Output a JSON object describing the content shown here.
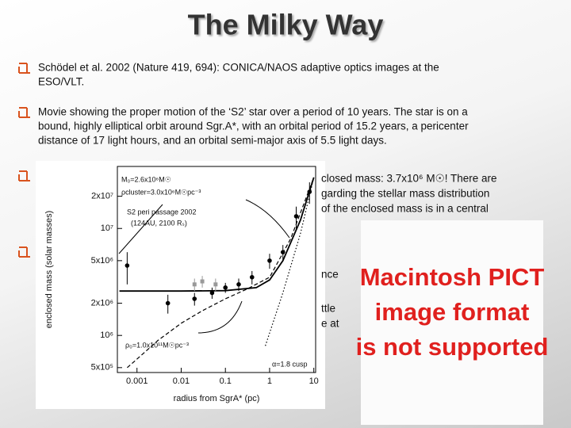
{
  "slide": {
    "title": "The Milky Way",
    "bullets": [
      {
        "lines": [
          "Schödel et al. 2002 (Nature 419, 694): CONICA/NAOS adaptive optics  images at the",
          "ESO/VLT."
        ]
      },
      {
        "lines": [
          "Movie showing the proper motion of the ‘S2’ star over a period of 10 years. The star is on a",
          "bound, highly elliptical orbit around Sgr.A*, with an orbital period of 15.2 years, a pericenter",
          "distance of 17 light hours, and an orbital semi-major axis of 5.5 light days."
        ]
      },
      {
        "lines": [
          "closed mass: 3.7x10⁶ M☉! There are",
          "garding the stellar mass distribution",
          "of the enclosed mass is in a central"
        ]
      },
      {
        "lines": [
          "nce",
          "ttle",
          "e at"
        ]
      }
    ]
  },
  "chart_data": {
    "type": "line",
    "xlabel": "radius from SgrA* (pc)",
    "ylabel": "enclosed mass (solar masses)",
    "xscale": "log",
    "yscale": "log",
    "xlim": [
      0.00036,
      11
    ],
    "ylim": [
      450000,
      38000000
    ],
    "xticks": [
      0.001,
      0.01,
      0.1,
      1,
      10
    ],
    "yticks": [
      {
        "value": 500000,
        "label": "5x10⁵"
      },
      {
        "value": 1000000,
        "label": "10⁶"
      },
      {
        "value": 2000000,
        "label": "2x10⁶"
      },
      {
        "value": 5000000,
        "label": "5x10⁶"
      },
      {
        "value": 10000000,
        "label": "10⁷"
      },
      {
        "value": 20000000,
        "label": "2x10⁷"
      }
    ],
    "series": [
      {
        "type": "line",
        "style": "solid",
        "color": "#000000",
        "x": [
          0.0004,
          0.003,
          0.01,
          0.1,
          0.5,
          1,
          2,
          5,
          10
        ],
        "values": [
          2600000,
          2600000,
          2600000,
          2620000,
          2800000,
          3300000,
          5000000,
          12000000,
          30000000
        ]
      },
      {
        "type": "line",
        "style": "dashed",
        "color": "#000000",
        "x": [
          0.0006,
          0.001,
          0.003,
          0.01,
          0.03,
          0.1,
          0.3,
          1,
          3,
          10
        ],
        "values": [
          500000,
          600000,
          900000,
          1300000,
          1700000,
          2200000,
          2700000,
          3500000,
          8000000,
          30000000
        ]
      },
      {
        "type": "line",
        "style": "dotted",
        "color": "#000000",
        "x": [
          0.8,
          2,
          5,
          10
        ],
        "values": [
          800000,
          2500000,
          9000000,
          30000000
        ]
      },
      {
        "type": "scatter",
        "marker": "circle",
        "color": "#000000",
        "x": [
          0.0006,
          0.005,
          0.02,
          0.05,
          0.1,
          0.2,
          0.4,
          1,
          2,
          4,
          8
        ],
        "values": [
          4500000,
          2000000,
          2200000,
          2500000,
          2800000,
          3000000,
          3500000,
          5000000,
          6000000,
          13000000,
          22000000
        ],
        "errors": [
          1500000,
          400000,
          300000,
          300000,
          300000,
          400000,
          500000,
          800000,
          1000000,
          3000000,
          5000000
        ]
      },
      {
        "type": "scatter",
        "marker": "square",
        "color": "#999999",
        "x": [
          0.02,
          0.03,
          0.06
        ],
        "values": [
          3000000,
          3200000,
          3000000
        ],
        "errors": [
          400000,
          400000,
          400000
        ]
      }
    ],
    "annotations": [
      "M₀=2.6x10⁶M☉",
      "ρcluster=3.0x10⁶M☉pc⁻³",
      "S2 peri passage 2002",
      "(124AU, 2100 Rₛ)",
      "ρ₀=1.0x10¹¹M☉pc⁻³",
      "α=1.8 cusp"
    ]
  },
  "pict_placeholder": {
    "lines": [
      "Macintosh PICT",
      "image format",
      "is not supported"
    ]
  }
}
